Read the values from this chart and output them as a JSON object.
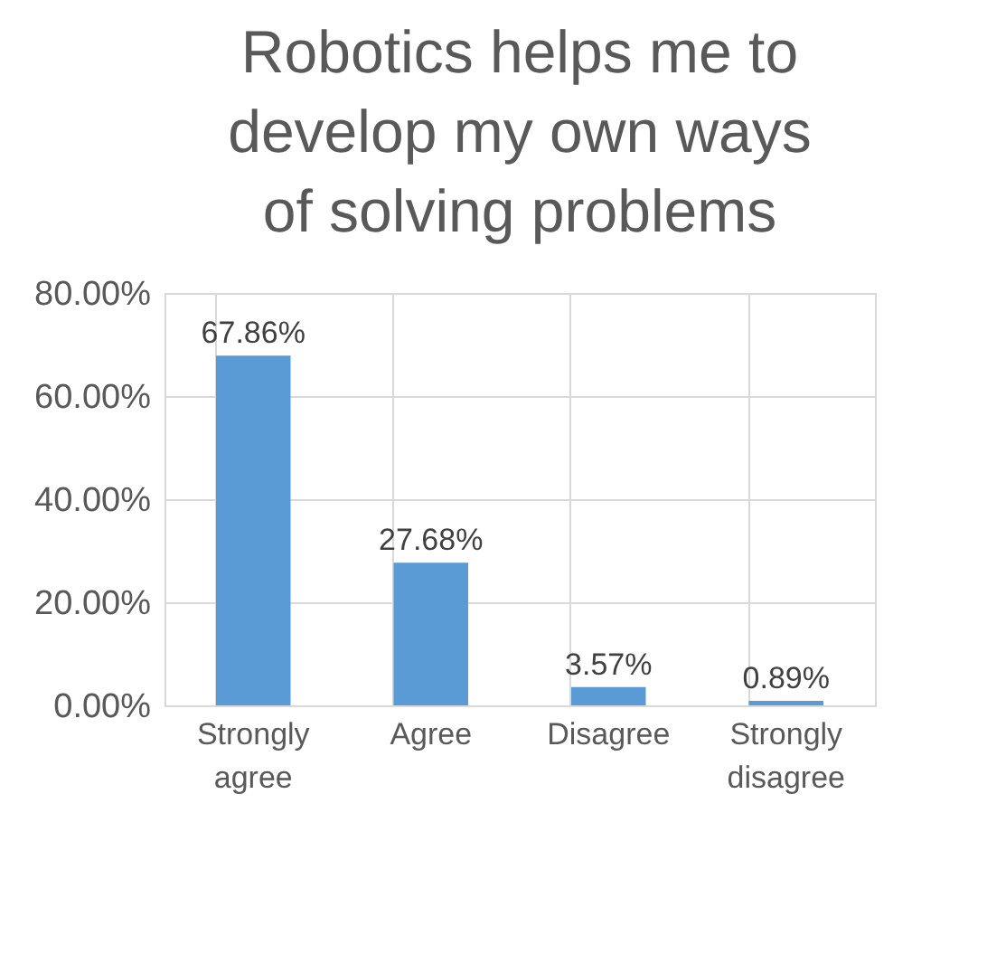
{
  "chart_data": {
    "type": "bar",
    "title": "Robotics helps me to develop my own ways of solving problems",
    "categories": [
      "Strongly agree",
      "Agree",
      "Disagree",
      "Strongly disagree"
    ],
    "values": [
      67.86,
      27.68,
      3.57,
      0.89
    ],
    "color": "#5b9bd5",
    "value_labels": [
      "67.86%",
      "27.68%",
      "3.57%",
      "0.89%"
    ],
    "ylim": [
      0,
      80
    ],
    "yticks": [
      {
        "value": 0,
        "label": "0.00%"
      },
      {
        "value": 20,
        "label": "20.00%"
      },
      {
        "value": 40,
        "label": "40.00%"
      },
      {
        "value": 60,
        "label": "60.00%"
      },
      {
        "value": 80,
        "label": "80.00%"
      }
    ],
    "grid": true
  }
}
